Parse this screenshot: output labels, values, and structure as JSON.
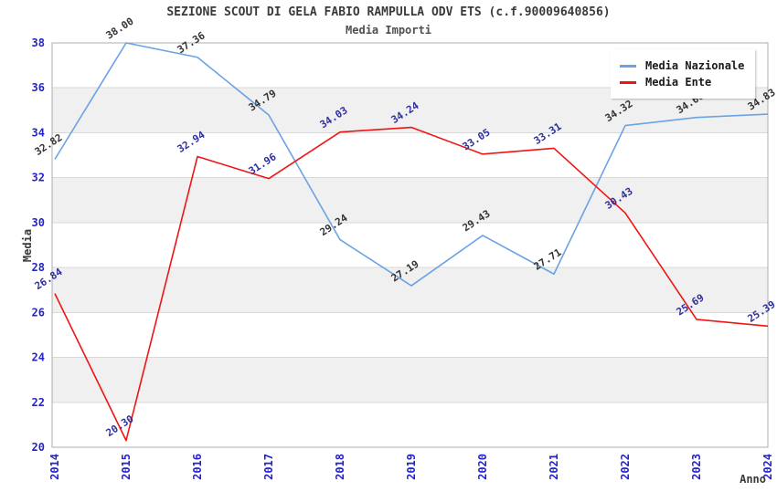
{
  "title": "SEZIONE SCOUT DI GELA FABIO RAMPULLA ODV ETS (c.f.90009640856)",
  "subtitle": "Media Importi",
  "colors": {
    "background": "#ffffff",
    "band": "#f0f0f0",
    "grid": "#d9d9d9",
    "border": "#adadad",
    "tick_labels": "#2323cb",
    "title_text": "#3a3a3a",
    "series_nazionale": "#69a3e3",
    "series_ente": "#ee1515"
  },
  "chart_data": {
    "type": "line",
    "title": "SEZIONE SCOUT DI GELA FABIO RAMPULLA ODV ETS (c.f.90009640856)",
    "subtitle": "Media Importi",
    "xlabel": "Anno",
    "ylabel": "Media",
    "x": [
      2014,
      2015,
      2016,
      2017,
      2018,
      2019,
      2020,
      2021,
      2022,
      2023,
      2024
    ],
    "series": [
      {
        "name": "Media Nazionale",
        "color": "#69a3e3",
        "label_color": "#333333",
        "values": [
          32.82,
          38.0,
          37.36,
          34.79,
          29.24,
          27.19,
          29.43,
          27.71,
          34.32,
          34.68,
          34.83
        ]
      },
      {
        "name": "Media Ente",
        "color": "#ee1515",
        "label_color": "#2f2f9d",
        "values": [
          26.84,
          20.3,
          32.94,
          31.96,
          34.03,
          34.24,
          33.05,
          33.31,
          30.43,
          25.69,
          25.39
        ]
      }
    ],
    "ylim": [
      20,
      38
    ],
    "ytick_step": 2,
    "grid": true,
    "alternating_bands": true,
    "legend_position": "top-right",
    "point_label_rotation_deg": -33,
    "x_tick_rotation_deg": -90
  }
}
